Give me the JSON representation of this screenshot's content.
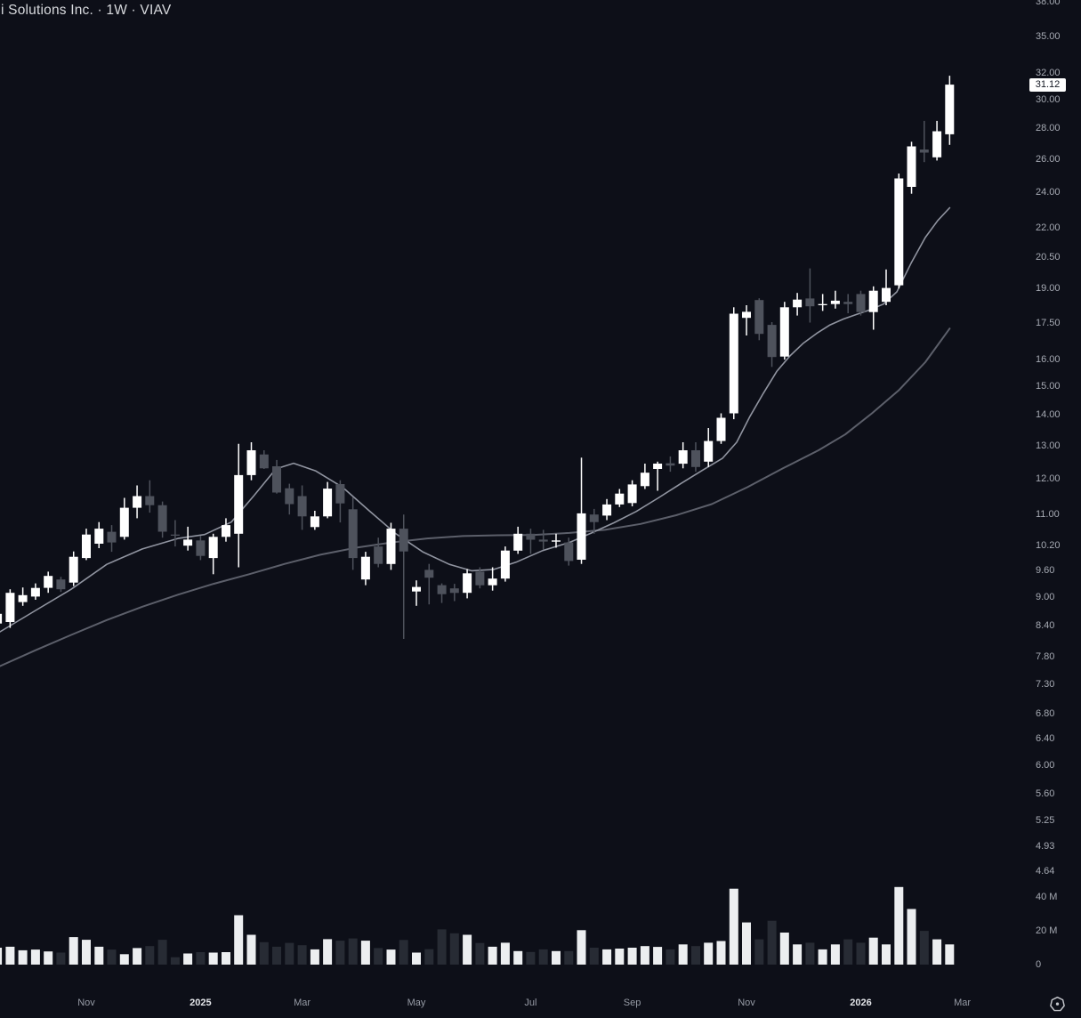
{
  "header": {
    "symbol_title": "i Solutions Inc. · 1W · VIAV"
  },
  "colors": {
    "background": "#0d0f18",
    "candle_up": "#ffffff",
    "candle_down": "#4e525c",
    "volume_up": "#eceef0",
    "volume_down": "#272b34",
    "ma_fast": "#9094a0",
    "ma_slow": "#5c5f6a",
    "axis_text": "#a6aab3",
    "last_price_bg": "#ffffff",
    "last_price_text": "#131722"
  },
  "chart_data": {
    "type": "candlestick",
    "title": "i Solutions Inc. · 1W · VIAV",
    "symbol": "VIAV",
    "interval": "1W",
    "scale": "log",
    "last_price": 31.12,
    "last_price_label": "31.12",
    "price_ticks": [
      {
        "label": "38.00",
        "value": 38
      },
      {
        "label": "35.00",
        "value": 35
      },
      {
        "label": "32.00",
        "value": 32
      },
      {
        "label": "30.00",
        "value": 30
      },
      {
        "label": "28.00",
        "value": 28
      },
      {
        "label": "26.00",
        "value": 26
      },
      {
        "label": "24.00",
        "value": 24
      },
      {
        "label": "22.00",
        "value": 22
      },
      {
        "label": "20.50",
        "value": 20.5
      },
      {
        "label": "19.00",
        "value": 19
      },
      {
        "label": "17.50",
        "value": 17.5
      },
      {
        "label": "16.00",
        "value": 16
      },
      {
        "label": "15.00",
        "value": 15
      },
      {
        "label": "14.00",
        "value": 14
      },
      {
        "label": "13.00",
        "value": 13
      },
      {
        "label": "12.00",
        "value": 12
      },
      {
        "label": "11.00",
        "value": 11
      },
      {
        "label": "10.20",
        "value": 10.2
      },
      {
        "label": "9.60",
        "value": 9.6
      },
      {
        "label": "9.00",
        "value": 9
      },
      {
        "label": "8.40",
        "value": 8.4
      },
      {
        "label": "7.80",
        "value": 7.8
      },
      {
        "label": "7.30",
        "value": 7.3
      },
      {
        "label": "6.80",
        "value": 6.8
      },
      {
        "label": "6.40",
        "value": 6.4
      },
      {
        "label": "6.00",
        "value": 6
      },
      {
        "label": "5.60",
        "value": 5.6
      },
      {
        "label": "5.25",
        "value": 5.25
      },
      {
        "label": "4.93",
        "value": 4.93
      },
      {
        "label": "4.64",
        "value": 4.64
      }
    ],
    "volume_ticks": [
      {
        "label": "40 M",
        "value": 40
      },
      {
        "label": "20 M",
        "value": 20
      },
      {
        "label": "0",
        "value": 0
      }
    ],
    "time_labels": [
      {
        "label": "Nov",
        "index": 7,
        "year": false
      },
      {
        "label": "2025",
        "index": 16,
        "year": true
      },
      {
        "label": "Mar",
        "index": 24,
        "year": false
      },
      {
        "label": "May",
        "index": 33,
        "year": false
      },
      {
        "label": "Jul",
        "index": 42,
        "year": false
      },
      {
        "label": "Sep",
        "index": 50,
        "year": false
      },
      {
        "label": "Nov",
        "index": 59,
        "year": false
      },
      {
        "label": "2026",
        "index": 68,
        "year": true
      },
      {
        "label": "Mar",
        "index": 76,
        "year": false
      }
    ],
    "candles_format": [
      "open",
      "high",
      "low",
      "close",
      "volume_millions"
    ],
    "candles": [
      [
        8.45,
        8.72,
        8.38,
        8.65,
        10.0
      ],
      [
        8.48,
        9.18,
        8.36,
        9.1,
        10.6
      ],
      [
        8.9,
        9.22,
        8.82,
        9.05,
        8.5
      ],
      [
        9.02,
        9.31,
        8.95,
        9.21,
        8.9
      ],
      [
        9.21,
        9.58,
        9.1,
        9.48,
        7.8
      ],
      [
        9.4,
        9.46,
        9.12,
        9.18,
        7.1
      ],
      [
        9.33,
        10.06,
        9.25,
        9.93,
        16.3
      ],
      [
        9.9,
        10.63,
        9.85,
        10.48,
        14.7
      ],
      [
        10.25,
        10.8,
        10.14,
        10.63,
        10.6
      ],
      [
        10.55,
        10.72,
        10.05,
        10.28,
        8.9
      ],
      [
        10.42,
        11.45,
        10.35,
        11.18,
        6.2
      ],
      [
        11.18,
        11.8,
        10.9,
        11.5,
        9.8
      ],
      [
        11.5,
        11.95,
        11.05,
        11.25,
        11.0
      ],
      [
        11.25,
        11.35,
        10.4,
        10.55,
        14.7
      ],
      [
        10.48,
        10.85,
        10.18,
        10.45,
        4.4
      ],
      [
        10.2,
        10.68,
        10.08,
        10.35,
        6.6
      ],
      [
        10.33,
        10.45,
        9.85,
        9.95,
        7.4
      ],
      [
        9.9,
        10.5,
        9.52,
        10.42,
        7.1
      ],
      [
        10.42,
        10.9,
        10.3,
        10.72,
        7.4
      ],
      [
        10.5,
        13.05,
        9.68,
        12.1,
        29.3
      ],
      [
        12.1,
        13.1,
        11.95,
        12.85,
        17.7
      ],
      [
        12.72,
        12.85,
        12.28,
        12.3,
        13.3
      ],
      [
        12.36,
        12.55,
        11.57,
        11.6,
        10.6
      ],
      [
        11.72,
        11.85,
        11.0,
        11.28,
        12.9
      ],
      [
        11.5,
        11.8,
        10.6,
        10.95,
        11.5
      ],
      [
        10.67,
        11.1,
        10.6,
        10.95,
        9.0
      ],
      [
        10.95,
        11.9,
        10.9,
        11.71,
        15.1
      ],
      [
        11.84,
        11.95,
        10.79,
        11.3,
        14.2
      ],
      [
        11.14,
        11.46,
        9.62,
        9.9,
        15.5
      ],
      [
        9.4,
        10.05,
        9.27,
        9.93,
        14.2
      ],
      [
        10.18,
        10.4,
        9.68,
        9.76,
        9.8
      ],
      [
        9.76,
        10.78,
        9.62,
        10.63,
        8.9
      ],
      [
        10.63,
        11.0,
        8.14,
        10.06,
        14.6
      ],
      [
        9.13,
        9.38,
        8.82,
        9.23,
        7.1
      ],
      [
        9.62,
        9.76,
        8.85,
        9.44,
        9.2
      ],
      [
        9.27,
        9.31,
        8.88,
        9.07,
        20.9
      ],
      [
        9.2,
        9.3,
        8.92,
        9.1,
        18.6
      ],
      [
        9.1,
        9.64,
        8.98,
        9.54,
        17.7
      ],
      [
        9.58,
        9.68,
        9.2,
        9.27,
        12.8
      ],
      [
        9.27,
        9.68,
        9.15,
        9.42,
        10.6
      ],
      [
        9.42,
        10.18,
        9.35,
        10.08,
        13.0
      ],
      [
        10.08,
        10.68,
        10.0,
        10.5,
        8.0
      ],
      [
        10.5,
        10.63,
        10.0,
        10.35,
        7.5
      ],
      [
        10.35,
        10.6,
        10.1,
        10.3,
        9.0
      ],
      [
        10.3,
        10.5,
        10.15,
        10.33,
        8.0
      ],
      [
        10.28,
        10.4,
        9.72,
        9.83,
        8.0
      ],
      [
        9.86,
        12.62,
        9.76,
        11.03,
        20.4
      ],
      [
        11.0,
        11.15,
        10.5,
        10.8,
        10.0
      ],
      [
        10.97,
        11.42,
        10.85,
        11.27,
        9.0
      ],
      [
        11.27,
        11.7,
        11.2,
        11.57,
        9.5
      ],
      [
        11.31,
        11.95,
        11.22,
        11.83,
        10.0
      ],
      [
        11.78,
        12.44,
        11.7,
        12.17,
        11.0
      ],
      [
        12.28,
        12.5,
        11.65,
        12.44,
        10.5
      ],
      [
        12.45,
        12.66,
        12.2,
        12.38,
        9.0
      ],
      [
        12.44,
        13.1,
        12.3,
        12.85,
        12.0
      ],
      [
        12.85,
        13.1,
        12.2,
        12.34,
        11.0
      ],
      [
        12.5,
        13.56,
        12.34,
        13.14,
        13.0
      ],
      [
        13.14,
        14.05,
        13.05,
        13.9,
        14.0
      ],
      [
        14.05,
        18.16,
        13.85,
        17.88,
        45.0
      ],
      [
        17.7,
        18.25,
        16.96,
        17.96,
        25.0
      ],
      [
        18.48,
        18.56,
        16.77,
        17.03,
        15.0
      ],
      [
        17.4,
        17.52,
        15.72,
        16.1,
        26.0
      ],
      [
        16.12,
        18.4,
        16.0,
        18.16,
        19.0
      ],
      [
        18.16,
        18.8,
        17.8,
        18.5,
        12.0
      ],
      [
        18.55,
        19.95,
        17.5,
        18.2,
        13.0
      ],
      [
        18.25,
        18.75,
        18.0,
        18.3,
        9.0
      ],
      [
        18.3,
        18.9,
        18.1,
        18.45,
        12.0
      ],
      [
        18.4,
        18.75,
        17.9,
        18.3,
        15.0
      ],
      [
        18.75,
        18.9,
        17.8,
        17.95,
        13.0
      ],
      [
        17.95,
        19.1,
        17.2,
        18.9,
        16.0
      ],
      [
        18.4,
        19.9,
        18.25,
        19.03,
        12.0
      ],
      [
        19.15,
        25.1,
        19.0,
        24.8,
        46.0
      ],
      [
        24.3,
        27.1,
        23.9,
        26.8,
        33.0
      ],
      [
        26.6,
        28.5,
        25.8,
        26.4,
        20.0
      ],
      [
        26.1,
        28.5,
        25.9,
        27.8,
        15.0
      ],
      [
        27.6,
        31.8,
        26.9,
        31.12,
        12.0
      ]
    ],
    "ma_fast": {
      "name": "fast moving average",
      "points": [
        [
          -3,
          8.25
        ],
        [
          40,
          8.72
        ],
        [
          80,
          9.18
        ],
        [
          120,
          9.75
        ],
        [
          160,
          10.12
        ],
        [
          200,
          10.38
        ],
        [
          230,
          10.48
        ],
        [
          260,
          10.8
        ],
        [
          285,
          11.5
        ],
        [
          310,
          12.28
        ],
        [
          330,
          12.45
        ],
        [
          355,
          12.22
        ],
        [
          385,
          11.75
        ],
        [
          415,
          11.1
        ],
        [
          445,
          10.5
        ],
        [
          475,
          10.05
        ],
        [
          505,
          9.75
        ],
        [
          530,
          9.6
        ],
        [
          555,
          9.63
        ],
        [
          580,
          9.8
        ],
        [
          610,
          10.08
        ],
        [
          640,
          10.28
        ],
        [
          665,
          10.52
        ],
        [
          690,
          10.78
        ],
        [
          715,
          11.08
        ],
        [
          740,
          11.45
        ],
        [
          765,
          11.85
        ],
        [
          790,
          12.25
        ],
        [
          812,
          12.6
        ],
        [
          828,
          13.1
        ],
        [
          843,
          13.95
        ],
        [
          858,
          14.75
        ],
        [
          873,
          15.55
        ],
        [
          888,
          16.15
        ],
        [
          903,
          16.65
        ],
        [
          918,
          17.05
        ],
        [
          933,
          17.4
        ],
        [
          948,
          17.65
        ],
        [
          963,
          17.85
        ],
        [
          978,
          18.05
        ],
        [
          993,
          18.3
        ],
        [
          1008,
          18.85
        ],
        [
          1024,
          20.2
        ],
        [
          1040,
          21.5
        ],
        [
          1054,
          22.4
        ],
        [
          1067.4,
          23.1
        ]
      ]
    },
    "ma_slow": {
      "name": "slow moving average",
      "points": [
        [
          -3,
          7.6
        ],
        [
          40,
          7.92
        ],
        [
          80,
          8.22
        ],
        [
          120,
          8.52
        ],
        [
          160,
          8.8
        ],
        [
          200,
          9.06
        ],
        [
          240,
          9.3
        ],
        [
          280,
          9.52
        ],
        [
          320,
          9.76
        ],
        [
          360,
          9.98
        ],
        [
          400,
          10.15
        ],
        [
          440,
          10.28
        ],
        [
          480,
          10.38
        ],
        [
          520,
          10.44
        ],
        [
          560,
          10.46
        ],
        [
          600,
          10.47
        ],
        [
          640,
          10.52
        ],
        [
          680,
          10.6
        ],
        [
          720,
          10.75
        ],
        [
          760,
          10.98
        ],
        [
          800,
          11.28
        ],
        [
          840,
          11.75
        ],
        [
          880,
          12.3
        ],
        [
          920,
          12.85
        ],
        [
          950,
          13.35
        ],
        [
          980,
          14.05
        ],
        [
          1010,
          14.85
        ],
        [
          1040,
          15.9
        ],
        [
          1067.4,
          17.25
        ]
      ]
    }
  }
}
